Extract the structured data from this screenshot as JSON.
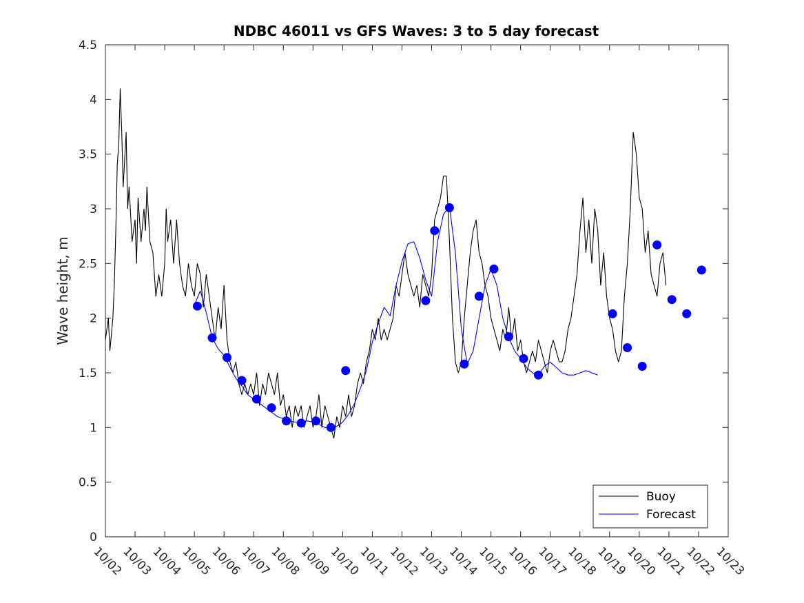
{
  "chart_data": {
    "type": "line",
    "title": "NDBC 46011 vs GFS Waves: 3 to 5 day forecast",
    "xlabel": "",
    "ylabel": "Wave height, m",
    "x_tick_labels": [
      "10/02",
      "10/03",
      "10/04",
      "10/05",
      "10/06",
      "10/07",
      "10/08",
      "10/09",
      "10/10",
      "10/11",
      "10/12",
      "10/13",
      "10/14",
      "10/15",
      "10/16",
      "10/17",
      "10/18",
      "10/19",
      "10/20",
      "10/21",
      "10/22",
      "10/23"
    ],
    "x_unit": "days since 10/02",
    "xlim": [
      0,
      21
    ],
    "ylim": [
      0,
      4.5
    ],
    "y_ticks": [
      0,
      0.5,
      1,
      1.5,
      2,
      2.5,
      3,
      3.5,
      4,
      4.5
    ],
    "y_tick_labels": [
      "0",
      "0.5",
      "1",
      "1.5",
      "2",
      "2.5",
      "3",
      "3.5",
      "4",
      "4.5"
    ],
    "legend": {
      "placement": "bottom-right",
      "entries": [
        {
          "label": "Buoy",
          "color": "#000000"
        },
        {
          "label": "Forecast",
          "color": "#0000ff"
        }
      ]
    },
    "series": [
      {
        "name": "Buoy",
        "color": "#000000",
        "style": "line",
        "points": [
          [
            0.0,
            1.8
          ],
          [
            0.1,
            2.0
          ],
          [
            0.15,
            1.7
          ],
          [
            0.25,
            2.0
          ],
          [
            0.3,
            2.3
          ],
          [
            0.35,
            2.8
          ],
          [
            0.4,
            3.4
          ],
          [
            0.45,
            3.6
          ],
          [
            0.5,
            4.1
          ],
          [
            0.55,
            3.7
          ],
          [
            0.6,
            3.2
          ],
          [
            0.7,
            3.7
          ],
          [
            0.75,
            3.0
          ],
          [
            0.8,
            3.2
          ],
          [
            0.9,
            2.7
          ],
          [
            1.0,
            2.9
          ],
          [
            1.05,
            2.5
          ],
          [
            1.1,
            3.1
          ],
          [
            1.2,
            2.7
          ],
          [
            1.3,
            3.0
          ],
          [
            1.35,
            2.8
          ],
          [
            1.4,
            3.2
          ],
          [
            1.5,
            2.7
          ],
          [
            1.6,
            2.6
          ],
          [
            1.7,
            2.2
          ],
          [
            1.8,
            2.4
          ],
          [
            1.9,
            2.2
          ],
          [
            2.0,
            2.5
          ],
          [
            2.05,
            3.0
          ],
          [
            2.1,
            2.7
          ],
          [
            2.2,
            2.9
          ],
          [
            2.3,
            2.5
          ],
          [
            2.4,
            2.9
          ],
          [
            2.5,
            2.5
          ],
          [
            2.6,
            2.3
          ],
          [
            2.7,
            2.2
          ],
          [
            2.8,
            2.5
          ],
          [
            2.9,
            2.3
          ],
          [
            3.0,
            2.2
          ],
          [
            3.1,
            2.5
          ],
          [
            3.2,
            2.4
          ],
          [
            3.3,
            2.1
          ],
          [
            3.4,
            2.4
          ],
          [
            3.5,
            2.2
          ],
          [
            3.6,
            2.0
          ],
          [
            3.7,
            1.8
          ],
          [
            3.8,
            2.1
          ],
          [
            3.9,
            1.9
          ],
          [
            4.0,
            2.3
          ],
          [
            4.1,
            1.8
          ],
          [
            4.2,
            1.6
          ],
          [
            4.3,
            1.5
          ],
          [
            4.4,
            1.6
          ],
          [
            4.5,
            1.4
          ],
          [
            4.6,
            1.3
          ],
          [
            4.7,
            1.4
          ],
          [
            4.8,
            1.3
          ],
          [
            4.9,
            1.4
          ],
          [
            5.0,
            1.3
          ],
          [
            5.1,
            1.5
          ],
          [
            5.2,
            1.2
          ],
          [
            5.3,
            1.4
          ],
          [
            5.4,
            1.3
          ],
          [
            5.5,
            1.5
          ],
          [
            5.6,
            1.4
          ],
          [
            5.7,
            1.3
          ],
          [
            5.8,
            1.5
          ],
          [
            5.9,
            1.2
          ],
          [
            6.0,
            1.3
          ],
          [
            6.1,
            1.1
          ],
          [
            6.2,
            1.2
          ],
          [
            6.3,
            1.0
          ],
          [
            6.4,
            1.2
          ],
          [
            6.5,
            1.1
          ],
          [
            6.6,
            1.2
          ],
          [
            6.7,
            1.0
          ],
          [
            6.8,
            1.1
          ],
          [
            6.9,
            1.2
          ],
          [
            7.0,
            1.0
          ],
          [
            7.1,
            1.1
          ],
          [
            7.2,
            1.3
          ],
          [
            7.3,
            1.0
          ],
          [
            7.4,
            1.2
          ],
          [
            7.5,
            1.1
          ],
          [
            7.6,
            1.0
          ],
          [
            7.7,
            0.9
          ],
          [
            7.8,
            1.1
          ],
          [
            7.9,
            1.0
          ],
          [
            8.0,
            1.2
          ],
          [
            8.1,
            1.1
          ],
          [
            8.2,
            1.3
          ],
          [
            8.3,
            1.1
          ],
          [
            8.4,
            1.2
          ],
          [
            8.5,
            1.4
          ],
          [
            8.6,
            1.5
          ],
          [
            8.7,
            1.4
          ],
          [
            8.8,
            1.6
          ],
          [
            8.9,
            1.7
          ],
          [
            9.0,
            1.9
          ],
          [
            9.1,
            1.8
          ],
          [
            9.2,
            2.0
          ],
          [
            9.3,
            1.8
          ],
          [
            9.4,
            1.9
          ],
          [
            9.5,
            1.8
          ],
          [
            9.6,
            1.9
          ],
          [
            9.7,
            2.0
          ],
          [
            9.8,
            2.3
          ],
          [
            9.9,
            2.2
          ],
          [
            10.0,
            2.4
          ],
          [
            10.1,
            2.6
          ],
          [
            10.2,
            2.4
          ],
          [
            10.3,
            2.3
          ],
          [
            10.4,
            2.2
          ],
          [
            10.5,
            2.3
          ],
          [
            10.6,
            2.1
          ],
          [
            10.7,
            2.4
          ],
          [
            10.8,
            2.3
          ],
          [
            10.9,
            2.2
          ],
          [
            11.0,
            2.4
          ],
          [
            11.1,
            2.9
          ],
          [
            11.2,
            3.0
          ],
          [
            11.3,
            3.1
          ],
          [
            11.4,
            3.3
          ],
          [
            11.5,
            3.3
          ],
          [
            11.6,
            2.7
          ],
          [
            11.7,
            2.0
          ],
          [
            11.8,
            1.6
          ],
          [
            11.9,
            1.5
          ],
          [
            12.0,
            1.6
          ],
          [
            12.1,
            2.0
          ],
          [
            12.2,
            2.3
          ],
          [
            12.3,
            2.6
          ],
          [
            12.4,
            2.8
          ],
          [
            12.5,
            2.9
          ],
          [
            12.6,
            2.6
          ],
          [
            12.7,
            2.5
          ],
          [
            12.8,
            2.3
          ],
          [
            12.9,
            2.2
          ],
          [
            13.0,
            2.0
          ],
          [
            13.1,
            1.9
          ],
          [
            13.2,
            1.8
          ],
          [
            13.3,
            1.7
          ],
          [
            13.4,
            1.9
          ],
          [
            13.5,
            1.8
          ],
          [
            13.6,
            2.1
          ],
          [
            13.7,
            1.8
          ],
          [
            13.8,
            2.0
          ],
          [
            13.9,
            1.7
          ],
          [
            14.0,
            1.8
          ],
          [
            14.1,
            1.6
          ],
          [
            14.2,
            1.5
          ],
          [
            14.3,
            1.6
          ],
          [
            14.4,
            1.7
          ],
          [
            14.5,
            1.6
          ],
          [
            14.6,
            1.8
          ],
          [
            14.7,
            1.7
          ],
          [
            14.8,
            1.6
          ],
          [
            14.9,
            1.5
          ],
          [
            15.0,
            1.7
          ],
          [
            15.1,
            1.8
          ],
          [
            15.2,
            1.7
          ],
          [
            15.3,
            1.6
          ],
          [
            15.4,
            1.6
          ],
          [
            15.5,
            1.7
          ],
          [
            15.6,
            1.9
          ],
          [
            15.7,
            2.0
          ],
          [
            15.8,
            2.2
          ],
          [
            15.9,
            2.4
          ],
          [
            16.0,
            2.8
          ],
          [
            16.1,
            3.1
          ],
          [
            16.2,
            2.6
          ],
          [
            16.3,
            2.9
          ],
          [
            16.4,
            2.5
          ],
          [
            16.5,
            3.0
          ],
          [
            16.6,
            2.8
          ],
          [
            16.7,
            2.3
          ],
          [
            16.8,
            2.6
          ],
          [
            16.9,
            2.2
          ],
          [
            17.0,
            2.0
          ],
          [
            17.1,
            1.9
          ],
          [
            17.2,
            1.7
          ],
          [
            17.3,
            1.6
          ],
          [
            17.4,
            1.7
          ],
          [
            17.5,
            2.2
          ],
          [
            17.6,
            2.5
          ],
          [
            17.7,
            3.0
          ],
          [
            17.8,
            3.7
          ],
          [
            17.9,
            3.5
          ],
          [
            18.0,
            3.1
          ],
          [
            18.1,
            3.0
          ],
          [
            18.2,
            2.6
          ],
          [
            18.3,
            2.8
          ],
          [
            18.4,
            2.4
          ],
          [
            18.5,
            2.3
          ],
          [
            18.6,
            2.2
          ],
          [
            18.7,
            2.5
          ],
          [
            18.8,
            2.6
          ],
          [
            18.9,
            2.3
          ]
        ]
      },
      {
        "name": "Forecast",
        "color": "#0000ff",
        "style": "line",
        "points": [
          [
            3.0,
            2.12
          ],
          [
            3.2,
            2.25
          ],
          [
            3.4,
            2.05
          ],
          [
            3.6,
            1.82
          ],
          [
            3.8,
            1.72
          ],
          [
            4.0,
            1.66
          ],
          [
            4.2,
            1.55
          ],
          [
            4.4,
            1.45
          ],
          [
            4.6,
            1.38
          ],
          [
            4.8,
            1.3
          ],
          [
            5.0,
            1.26
          ],
          [
            5.2,
            1.22
          ],
          [
            5.4,
            1.18
          ],
          [
            5.6,
            1.14
          ],
          [
            5.8,
            1.1
          ],
          [
            6.0,
            1.08
          ],
          [
            6.2,
            1.06
          ],
          [
            6.4,
            1.05
          ],
          [
            6.6,
            1.05
          ],
          [
            6.8,
            1.06
          ],
          [
            7.0,
            1.05
          ],
          [
            7.2,
            1.03
          ],
          [
            7.4,
            1.0
          ],
          [
            7.6,
            0.99
          ],
          [
            7.8,
            1.01
          ],
          [
            8.0,
            1.05
          ],
          [
            8.2,
            1.12
          ],
          [
            8.4,
            1.22
          ],
          [
            8.6,
            1.36
          ],
          [
            8.8,
            1.52
          ],
          [
            9.0,
            1.78
          ],
          [
            9.2,
            1.95
          ],
          [
            9.4,
            2.1
          ],
          [
            9.6,
            2.02
          ],
          [
            9.8,
            2.3
          ],
          [
            10.0,
            2.52
          ],
          [
            10.2,
            2.68
          ],
          [
            10.4,
            2.7
          ],
          [
            10.6,
            2.55
          ],
          [
            10.8,
            2.35
          ],
          [
            11.0,
            2.2
          ],
          [
            11.2,
            2.7
          ],
          [
            11.4,
            2.95
          ],
          [
            11.6,
            3.02
          ],
          [
            11.8,
            2.6
          ],
          [
            12.0,
            1.9
          ],
          [
            12.2,
            1.58
          ],
          [
            12.4,
            1.7
          ],
          [
            12.6,
            2.0
          ],
          [
            12.8,
            2.3
          ],
          [
            13.0,
            2.45
          ],
          [
            13.2,
            2.3
          ],
          [
            13.4,
            2.0
          ],
          [
            13.6,
            1.82
          ],
          [
            13.8,
            1.7
          ],
          [
            14.0,
            1.63
          ],
          [
            14.2,
            1.55
          ],
          [
            14.4,
            1.5
          ],
          [
            14.6,
            1.48
          ],
          [
            14.8,
            1.56
          ],
          [
            15.0,
            1.6
          ],
          [
            15.2,
            1.55
          ],
          [
            15.4,
            1.5
          ],
          [
            15.6,
            1.48
          ],
          [
            15.8,
            1.48
          ],
          [
            16.0,
            1.5
          ],
          [
            16.2,
            1.52
          ],
          [
            16.4,
            1.5
          ],
          [
            16.6,
            1.48
          ]
        ]
      },
      {
        "name": "Forecast (3-day markers)",
        "color": "#0000ff",
        "style": "markers",
        "points": [
          [
            3.1,
            2.11
          ],
          [
            3.6,
            1.82
          ],
          [
            4.1,
            1.64
          ],
          [
            4.6,
            1.43
          ],
          [
            5.1,
            1.26
          ],
          [
            5.6,
            1.18
          ],
          [
            6.1,
            1.06
          ],
          [
            6.6,
            1.04
          ],
          [
            7.1,
            1.06
          ],
          [
            7.6,
            1.0
          ],
          [
            8.1,
            1.52
          ],
          [
            10.8,
            2.16
          ],
          [
            11.1,
            2.8
          ],
          [
            11.6,
            3.01
          ],
          [
            12.1,
            1.58
          ],
          [
            12.6,
            2.2
          ],
          [
            13.1,
            2.45
          ],
          [
            13.6,
            1.83
          ],
          [
            14.1,
            1.63
          ],
          [
            14.6,
            1.48
          ],
          [
            17.1,
            2.04
          ],
          [
            17.6,
            1.73
          ],
          [
            18.1,
            1.56
          ],
          [
            18.6,
            2.67
          ],
          [
            19.1,
            2.17
          ],
          [
            19.6,
            2.04
          ],
          [
            20.1,
            2.44
          ]
        ]
      }
    ]
  }
}
